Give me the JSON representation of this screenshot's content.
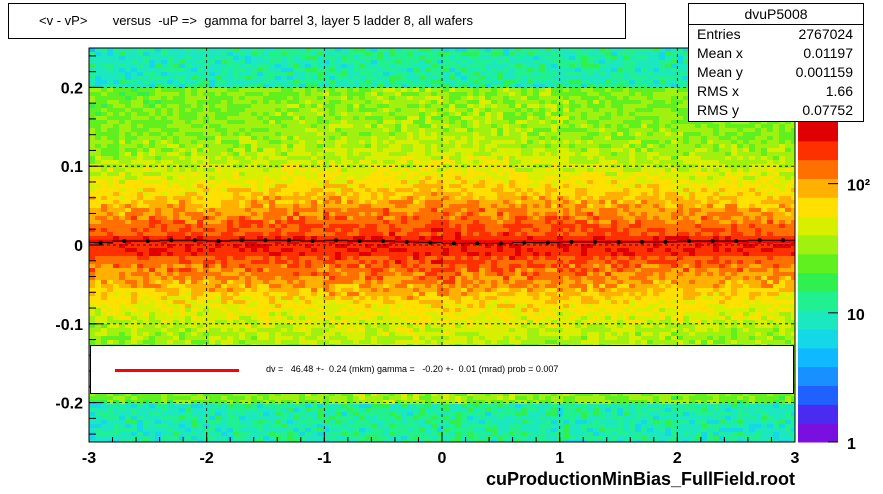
{
  "title": "<v - vP>       versus  -uP =>  gamma for barrel 3, layer 5 ladder 8, all wafers",
  "stats": {
    "name": "dvuP5008",
    "rows": [
      {
        "label": "Entries",
        "value": "2767024"
      },
      {
        "label": "Mean x",
        "value": "0.01197"
      },
      {
        "label": "Mean y",
        "value": "0.001159"
      },
      {
        "label": "RMS x",
        "value": "1.66"
      },
      {
        "label": "RMS y",
        "value": "0.07752"
      }
    ]
  },
  "fit_legend": "dv =   46.48 +-  0.24 (mkm) gamma =   -0.20 +-  0.01 (mrad) prob = 0.007",
  "footer": "cuProductionMinBias_FullField.root",
  "colors": {
    "fit_line": "#ff0000",
    "profile_points": "#000000"
  },
  "chart_data": {
    "type": "heatmap",
    "title": "<v - vP>       versus  -uP =>  gamma for barrel 3, layer 5 ladder 8, all wafers",
    "xlim": [
      -3,
      3
    ],
    "ylim": [
      -0.25,
      0.25
    ],
    "x_ticks": [
      -3,
      -2,
      -1,
      0,
      1,
      2,
      3
    ],
    "y_ticks": [
      -0.2,
      -0.1,
      0,
      0.1,
      0.2
    ],
    "x_tick_labels": [
      "-3",
      "-2",
      "-1",
      "0",
      "1",
      "2",
      "3"
    ],
    "y_tick_labels": [
      "-0.2",
      "-0.1",
      "0",
      "0.1",
      "0.2"
    ],
    "grid": true,
    "colorbar": {
      "scale": "log",
      "range": [
        1,
        300
      ],
      "tick_values": [
        1,
        10,
        100
      ],
      "tick_labels": [
        "1",
        "10",
        "10²"
      ]
    },
    "profile": {
      "x": [
        -2.9,
        -2.7,
        -2.5,
        -2.3,
        -2.1,
        -1.9,
        -1.7,
        -1.5,
        -1.3,
        -1.1,
        -0.9,
        -0.7,
        -0.5,
        -0.3,
        -0.1,
        0.1,
        0.3,
        0.5,
        0.7,
        0.9,
        1.1,
        1.3,
        1.5,
        1.7,
        1.9,
        2.1,
        2.3,
        2.5,
        2.7,
        2.9
      ],
      "y": [
        0.003,
        0.005,
        0.005,
        0.006,
        0.006,
        0.005,
        0.006,
        0.006,
        0.006,
        0.005,
        0.006,
        0.005,
        0.005,
        0.004,
        0.003,
        0.002,
        0.002,
        0.002,
        0.003,
        0.003,
        0.004,
        0.004,
        0.004,
        0.004,
        0.004,
        0.005,
        0.005,
        0.005,
        0.006,
        0.006
      ]
    },
    "fit": {
      "intercept": 0.00465,
      "slope": -0.0002
    }
  }
}
